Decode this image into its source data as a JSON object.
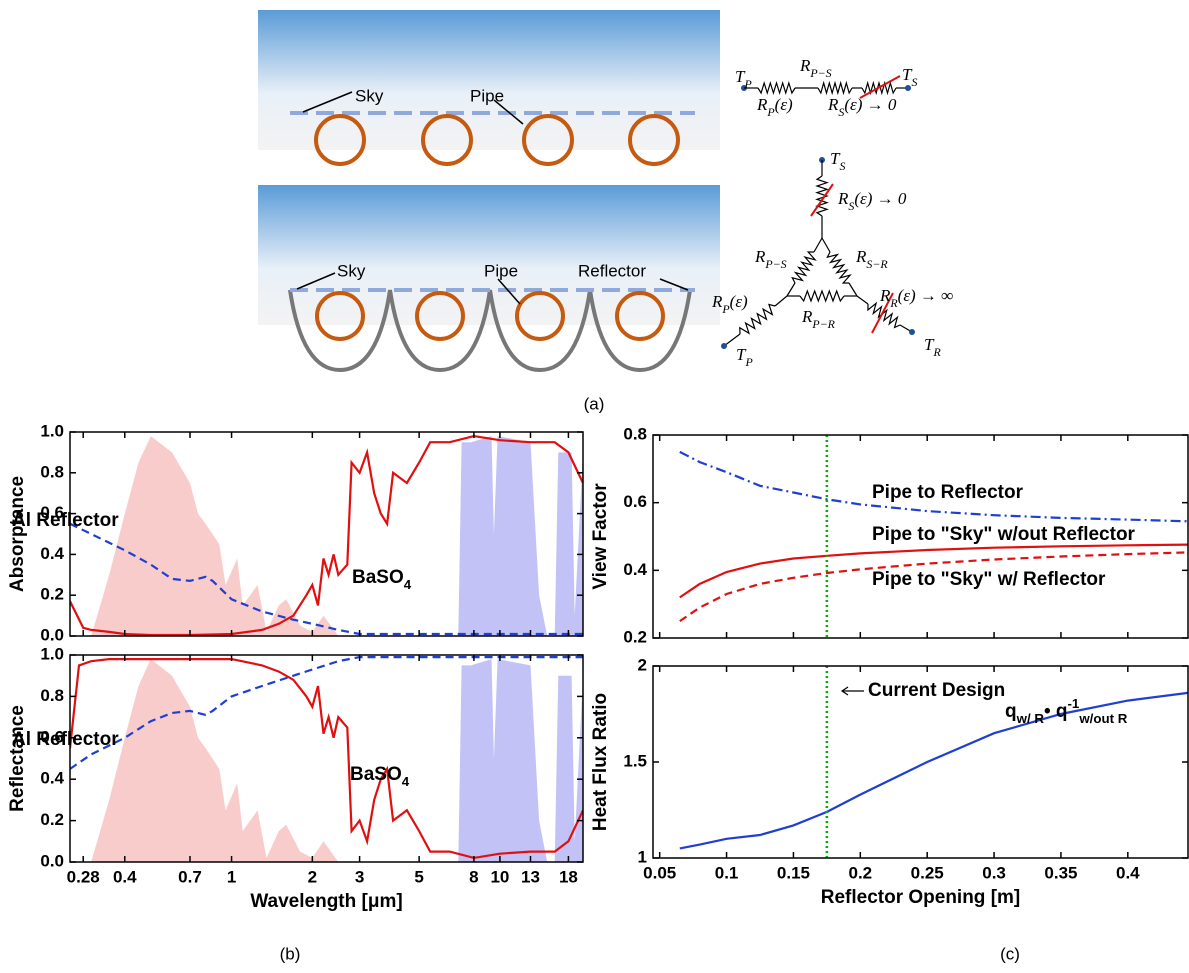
{
  "diagram": {
    "top_scene": {
      "sky": "Sky",
      "pipe": "Pipe"
    },
    "top_network": [
      [
        {
          "t": "T"
        },
        {
          "sub": "P"
        }
      ],
      [
        {
          "t": "R"
        },
        {
          "sub": "P−S"
        }
      ],
      [
        {
          "t": "T"
        },
        {
          "sub": "S"
        }
      ],
      [
        {
          "t": "R"
        },
        {
          "sub": "P"
        },
        {
          "t": "(ε)"
        }
      ],
      [
        {
          "t": "R"
        },
        {
          "sub": "S"
        },
        {
          "t": "(ε) → 0"
        }
      ]
    ],
    "bottom_scene": {
      "sky": "Sky",
      "pipe": "Pipe",
      "reflector": "Reflector"
    },
    "bottom_network": [
      [
        {
          "t": "T"
        },
        {
          "sub": "S"
        }
      ],
      [
        {
          "t": "R"
        },
        {
          "sub": "S"
        },
        {
          "t": "(ε) → 0"
        }
      ],
      [
        {
          "t": "R"
        },
        {
          "sub": "P−S"
        }
      ],
      [
        {
          "t": "R"
        },
        {
          "sub": "S−R"
        }
      ],
      [
        {
          "t": "R"
        },
        {
          "sub": "P"
        },
        {
          "t": "(ε)"
        }
      ],
      [
        {
          "t": "R"
        },
        {
          "sub": "P−R"
        }
      ],
      [
        {
          "t": "R"
        },
        {
          "sub": "R"
        },
        {
          "t": "(ε) → ∞"
        }
      ],
      [
        {
          "t": "T"
        },
        {
          "sub": "P"
        }
      ],
      [
        {
          "t": "T"
        },
        {
          "sub": "R"
        }
      ]
    ],
    "caption": "(a)"
  },
  "captions": {
    "b": "(b)",
    "c": "(c)"
  },
  "chart_data": [
    {
      "type": "line",
      "ylabel": "Absorptance",
      "xscale": "log",
      "xlim": [
        0.25,
        20.4
      ],
      "ylim": [
        0,
        1
      ],
      "yticks": [
        {
          "value": 0,
          "label": "0.0"
        },
        0.2,
        0.4,
        0.6,
        0.8,
        {
          "value": 1,
          "label": "1.0"
        }
      ],
      "series": [
        {
          "style": "area",
          "color": "#f4a3a3",
          "x": [
            0.3,
            0.35,
            0.4,
            0.45,
            0.5,
            0.6,
            0.7,
            0.75,
            0.8,
            0.9,
            0.95,
            1.05,
            1.1,
            1.25,
            1.35,
            1.5,
            1.6,
            1.8,
            2.0,
            2.2,
            2.5
          ],
          "values": [
            0,
            0.3,
            0.6,
            0.85,
            0.98,
            0.9,
            0.75,
            0.6,
            0.55,
            0.45,
            0.25,
            0.38,
            0.15,
            0.25,
            0.02,
            0.15,
            0.18,
            0.05,
            0.02,
            0.1,
            0
          ]
        },
        {
          "style": "area",
          "color": "#8f8ff0",
          "x": [
            7,
            7.2,
            7.8,
            9.3,
            9.5,
            9.8,
            13,
            14,
            15,
            16,
            16.5,
            18.5,
            19,
            20.4
          ],
          "values": [
            0,
            0.95,
            0.95,
            0.98,
            0.5,
            0.98,
            0.95,
            0.2,
            0,
            0,
            0.9,
            0.9,
            0.1,
            0.9
          ]
        },
        {
          "style": "line",
          "dash": "dashed",
          "color": "#1f3fd0",
          "x": [
            0.25,
            0.3,
            0.4,
            0.5,
            0.6,
            0.7,
            0.8,
            0.85,
            1.0,
            1.3,
            1.7,
            2.0,
            2.5,
            3,
            5,
            10,
            20.4
          ],
          "values": [
            0.55,
            0.5,
            0.42,
            0.35,
            0.28,
            0.27,
            0.29,
            0.27,
            0.18,
            0.12,
            0.08,
            0.06,
            0.03,
            0.01,
            0.01,
            0.01,
            0.01
          ]
        },
        {
          "style": "line",
          "color": "#e01010",
          "x": [
            0.25,
            0.28,
            0.3,
            0.35,
            0.4,
            0.5,
            0.7,
            1.0,
            1.3,
            1.5,
            1.7,
            1.9,
            2.0,
            2.1,
            2.2,
            2.3,
            2.4,
            2.5,
            2.7,
            2.8,
            3.0,
            3.2,
            3.4,
            3.6,
            3.8,
            4.0,
            4.5,
            5.0,
            5.5,
            6.5,
            8,
            10,
            13,
            16,
            18,
            20.4
          ],
          "values": [
            0.17,
            0.04,
            0.03,
            0.02,
            0.01,
            0.005,
            0.005,
            0.01,
            0.03,
            0.06,
            0.1,
            0.2,
            0.25,
            0.15,
            0.38,
            0.3,
            0.4,
            0.3,
            0.35,
            0.85,
            0.8,
            0.9,
            0.7,
            0.6,
            0.55,
            0.8,
            0.75,
            0.85,
            0.95,
            0.95,
            0.98,
            0.96,
            0.95,
            0.95,
            0.9,
            0.75
          ]
        }
      ],
      "annotations": [
        "Al Reflector",
        [
          {
            "t": "BaSO"
          },
          {
            "sub": "4"
          }
        ]
      ]
    },
    {
      "type": "line",
      "ylabel": "Reflectance",
      "xlabel": "Wavelength [μm]",
      "xscale": "log",
      "xlim": [
        0.25,
        20.4
      ],
      "ylim": [
        0,
        1
      ],
      "yticks": [
        {
          "value": 0,
          "label": "0.0"
        },
        0.2,
        0.4,
        0.6,
        0.8,
        {
          "value": 1,
          "label": "1.0"
        }
      ],
      "xticks": [
        0.28,
        0.4,
        0.7,
        1,
        2,
        3,
        5,
        8,
        10,
        13,
        18
      ],
      "series": [
        {
          "style": "area",
          "color": "#f4a3a3",
          "x": [
            0.3,
            0.35,
            0.4,
            0.45,
            0.5,
            0.6,
            0.7,
            0.75,
            0.8,
            0.9,
            0.95,
            1.05,
            1.1,
            1.25,
            1.35,
            1.5,
            1.6,
            1.8,
            2.0,
            2.2,
            2.5
          ],
          "values": [
            0,
            0.3,
            0.6,
            0.85,
            0.98,
            0.9,
            0.75,
            0.6,
            0.55,
            0.45,
            0.25,
            0.38,
            0.15,
            0.25,
            0.02,
            0.15,
            0.18,
            0.05,
            0.02,
            0.1,
            0
          ]
        },
        {
          "style": "area",
          "color": "#8f8ff0",
          "x": [
            7,
            7.2,
            7.8,
            9.3,
            9.5,
            9.8,
            13,
            14,
            15,
            16,
            16.5,
            18.5,
            19,
            20.4
          ],
          "values": [
            0,
            0.95,
            0.95,
            0.98,
            0.5,
            0.98,
            0.95,
            0.2,
            0,
            0,
            0.9,
            0.9,
            0.1,
            0.9
          ]
        },
        {
          "style": "line",
          "dash": "dashed",
          "color": "#1f3fd0",
          "x": [
            0.25,
            0.3,
            0.4,
            0.5,
            0.6,
            0.7,
            0.8,
            0.85,
            1.0,
            1.3,
            1.7,
            2.0,
            2.5,
            3,
            5,
            10,
            20.4
          ],
          "values": [
            0.45,
            0.52,
            0.6,
            0.68,
            0.72,
            0.73,
            0.71,
            0.73,
            0.8,
            0.85,
            0.9,
            0.93,
            0.97,
            0.99,
            0.99,
            0.99,
            0.99
          ]
        },
        {
          "style": "line",
          "color": "#e01010",
          "x": [
            0.25,
            0.27,
            0.3,
            0.35,
            0.4,
            0.5,
            0.7,
            1.0,
            1.3,
            1.5,
            1.7,
            1.9,
            2.0,
            2.1,
            2.2,
            2.3,
            2.4,
            2.5,
            2.7,
            2.8,
            3.0,
            3.2,
            3.4,
            3.6,
            3.8,
            4.0,
            4.5,
            5.0,
            5.5,
            6.5,
            8,
            10,
            13,
            16,
            18,
            20.4
          ],
          "values": [
            0.55,
            0.95,
            0.97,
            0.98,
            0.98,
            0.98,
            0.98,
            0.98,
            0.95,
            0.92,
            0.88,
            0.8,
            0.75,
            0.85,
            0.62,
            0.7,
            0.6,
            0.7,
            0.65,
            0.15,
            0.2,
            0.1,
            0.3,
            0.4,
            0.45,
            0.2,
            0.25,
            0.15,
            0.05,
            0.05,
            0.02,
            0.04,
            0.05,
            0.05,
            0.1,
            0.25
          ]
        }
      ],
      "annotations": [
        "Al Reflector",
        [
          {
            "t": "BaSO"
          },
          {
            "sub": "4"
          }
        ]
      ]
    },
    {
      "type": "line",
      "ylabel": "View Factor",
      "xlim": [
        0.045,
        0.445
      ],
      "ylim": [
        0.2,
        0.8
      ],
      "yticks": [
        0.2,
        0.4,
        0.6,
        0.8
      ],
      "vline": {
        "x": 0.175,
        "color": "#00b000"
      },
      "series": [
        {
          "style": "line",
          "dash": "dashdot",
          "color": "#1f3fd0",
          "x": [
            0.065,
            0.08,
            0.1,
            0.125,
            0.15,
            0.175,
            0.2,
            0.25,
            0.3,
            0.35,
            0.4,
            0.445
          ],
          "values": [
            0.75,
            0.72,
            0.69,
            0.65,
            0.63,
            0.61,
            0.595,
            0.575,
            0.563,
            0.555,
            0.55,
            0.545
          ]
        },
        {
          "style": "line",
          "color": "#e01010",
          "x": [
            0.065,
            0.08,
            0.1,
            0.125,
            0.15,
            0.175,
            0.2,
            0.25,
            0.3,
            0.35,
            0.4,
            0.445
          ],
          "values": [
            0.32,
            0.36,
            0.395,
            0.42,
            0.435,
            0.443,
            0.45,
            0.46,
            0.467,
            0.471,
            0.474,
            0.476
          ]
        },
        {
          "style": "line",
          "dash": "dashed",
          "color": "#e01010",
          "x": [
            0.065,
            0.08,
            0.1,
            0.125,
            0.15,
            0.175,
            0.2,
            0.25,
            0.3,
            0.35,
            0.4,
            0.445
          ],
          "values": [
            0.25,
            0.29,
            0.33,
            0.36,
            0.378,
            0.392,
            0.403,
            0.42,
            0.432,
            0.441,
            0.448,
            0.453
          ]
        }
      ],
      "annotations": [
        "Pipe to Reflector",
        "Pipe to \"Sky\" w/out Reflector",
        "Pipe to \"Sky\" w/ Reflector"
      ]
    },
    {
      "type": "line",
      "ylabel": "Heat Flux Ratio",
      "xlabel": "Reflector Opening [m]",
      "xlim": [
        0.045,
        0.445
      ],
      "ylim": [
        1,
        2
      ],
      "yticks": [
        1,
        1.5,
        2
      ],
      "xticks": [
        0.05,
        0.1,
        0.15,
        0.2,
        0.25,
        0.3,
        0.35,
        0.4
      ],
      "vline": {
        "x": 0.175,
        "color": "#00b000"
      },
      "series": [
        {
          "style": "line",
          "color": "#1f3fd0",
          "x": [
            0.065,
            0.08,
            0.1,
            0.125,
            0.15,
            0.175,
            0.2,
            0.25,
            0.3,
            0.35,
            0.4,
            0.445
          ],
          "values": [
            1.05,
            1.07,
            1.1,
            1.12,
            1.17,
            1.24,
            1.33,
            1.5,
            1.65,
            1.75,
            1.82,
            1.86
          ]
        }
      ],
      "annotations": [
        "Current Design",
        [
          {
            "t": "q"
          },
          {
            "sub": "w/ R"
          },
          {
            "t": "•"
          },
          {
            "t": " q"
          },
          {
            "sup": "-1"
          },
          {
            "sub": "w/out R"
          }
        ]
      ]
    }
  ]
}
